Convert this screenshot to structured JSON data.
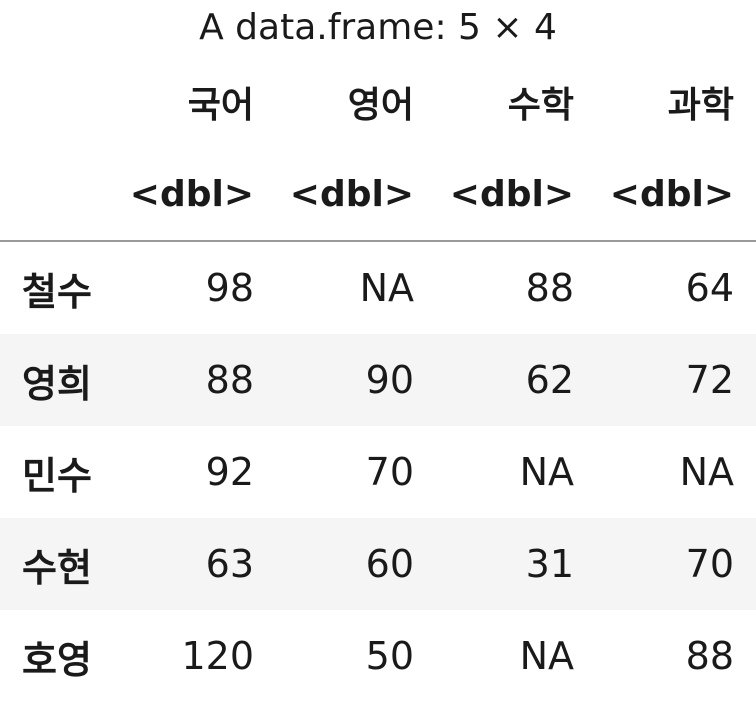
{
  "caption": "A data.frame: 5 × 4",
  "columns": [
    "국어",
    "영어",
    "수학",
    "과학"
  ],
  "types": [
    "<dbl>",
    "<dbl>",
    "<dbl>",
    "<dbl>"
  ],
  "rows": [
    {
      "name": "철수",
      "values": [
        "98",
        "NA",
        "88",
        "64"
      ]
    },
    {
      "name": "영희",
      "values": [
        "88",
        "90",
        "62",
        "72"
      ]
    },
    {
      "name": "민수",
      "values": [
        "92",
        "70",
        "NA",
        "NA"
      ]
    },
    {
      "name": "수현",
      "values": [
        "63",
        "60",
        "31",
        "70"
      ]
    },
    {
      "name": "호영",
      "values": [
        "120",
        "50",
        "NA",
        "88"
      ]
    }
  ]
}
